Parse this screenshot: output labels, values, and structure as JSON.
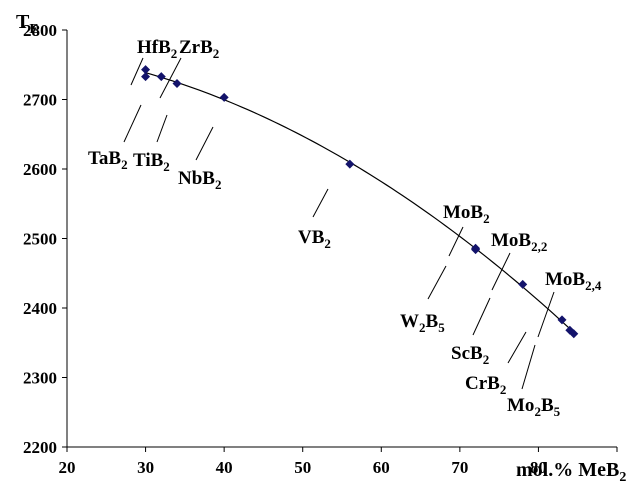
{
  "chart_data": {
    "type": "scatter",
    "ylabel": "T",
    "ylabel_sub": "E",
    "xlabel": "mol.% MeB",
    "xlabel_sub": "2",
    "xlim": [
      20,
      90
    ],
    "ylim": [
      2200,
      2800
    ],
    "x_ticks": [
      20,
      30,
      40,
      50,
      60,
      70,
      80
    ],
    "y_ticks": [
      2200,
      2300,
      2400,
      2500,
      2600,
      2700,
      2800
    ],
    "grid": false,
    "marker_color": "#13136b",
    "trendline": "polynomial",
    "points": [
      {
        "x": 30,
        "y": 2743
      },
      {
        "x": 30,
        "y": 2733
      },
      {
        "x": 32,
        "y": 2733
      },
      {
        "x": 34,
        "y": 2723
      },
      {
        "x": 40,
        "y": 2703
      },
      {
        "x": 56,
        "y": 2607
      },
      {
        "x": 72,
        "y": 2486
      },
      {
        "x": 72,
        "y": 2484
      },
      {
        "x": 78,
        "y": 2434
      },
      {
        "x": 83,
        "y": 2383
      },
      {
        "x": 84,
        "y": 2368
      },
      {
        "x": 84.5,
        "y": 2363
      }
    ],
    "annotations": [
      {
        "base": "HfB",
        "sub": "2",
        "x": 30,
        "y": 2743
      },
      {
        "base": "ZrB",
        "sub": "2",
        "x": 32,
        "y": 2733
      },
      {
        "base": "TaB",
        "sub": "2",
        "x": 30,
        "y": 2733
      },
      {
        "base": "TiB",
        "sub": "2",
        "x": 34,
        "y": 2723
      },
      {
        "base": "NbB",
        "sub": "2",
        "x": 40,
        "y": 2703
      },
      {
        "base": "VB",
        "sub": "2",
        "x": 56,
        "y": 2607
      },
      {
        "base": "MoB",
        "sub": "2",
        "x": 72,
        "y": 2486
      },
      {
        "base": "W",
        "sub": "2",
        "base2": "B",
        "sub2": "5",
        "x": 72,
        "y": 2484
      },
      {
        "base": "MoB",
        "sub": "2,2",
        "x": 78,
        "y": 2434
      },
      {
        "base": "ScB",
        "sub": "2",
        "x": 78,
        "y": 2434
      },
      {
        "base": "CrB",
        "sub": "2",
        "x": 83,
        "y": 2383
      },
      {
        "base": "MoB",
        "sub": "2,4",
        "x": 84.5,
        "y": 2363
      },
      {
        "base": "Mo",
        "sub": "2",
        "base2": "B",
        "sub2": "5",
        "x": 84,
        "y": 2368
      }
    ]
  }
}
